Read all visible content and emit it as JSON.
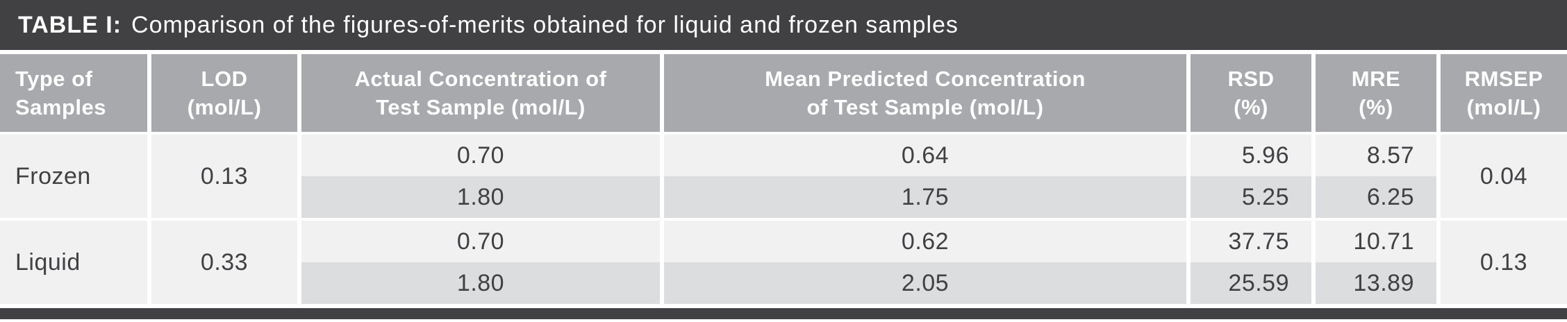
{
  "title": {
    "label": "TABLE I:",
    "caption": "Comparison of the figures-of-merits obtained for liquid and frozen samples"
  },
  "table": {
    "headers": [
      {
        "lines": [
          "Type of",
          "Samples"
        ]
      },
      {
        "lines": [
          "LOD",
          "(mol/L)"
        ]
      },
      {
        "lines": [
          "Actual Concentration of",
          "Test Sample (mol/L)"
        ]
      },
      {
        "lines": [
          "Mean Predicted Concentration",
          "of Test Sample (mol/L)"
        ]
      },
      {
        "lines": [
          "RSD",
          "(%)"
        ]
      },
      {
        "lines": [
          "MRE",
          "(%)"
        ]
      },
      {
        "lines": [
          "RMSEP",
          "(mol/L)"
        ]
      }
    ],
    "groups": [
      {
        "type": "Frozen",
        "lod": "0.13",
        "rmsep": "0.04",
        "rows": [
          {
            "actual": "0.70",
            "predicted": "0.64",
            "rsd": "5.96",
            "mre": "8.57"
          },
          {
            "actual": "1.80",
            "predicted": "1.75",
            "rsd": "5.25",
            "mre": "6.25"
          }
        ]
      },
      {
        "type": "Liquid",
        "lod": "0.33",
        "rmsep": "0.13",
        "rows": [
          {
            "actual": "0.70",
            "predicted": "0.62",
            "rsd": "37.75",
            "mre": "10.71"
          },
          {
            "actual": "1.80",
            "predicted": "2.05",
            "rsd": "25.59",
            "mre": "13.89"
          }
        ]
      }
    ]
  },
  "colors": {
    "title_bar_bg": "#414042",
    "header_bg": "#a7a9ac",
    "row_light": "#f1f1f2",
    "row_shade": "#dcddde"
  }
}
